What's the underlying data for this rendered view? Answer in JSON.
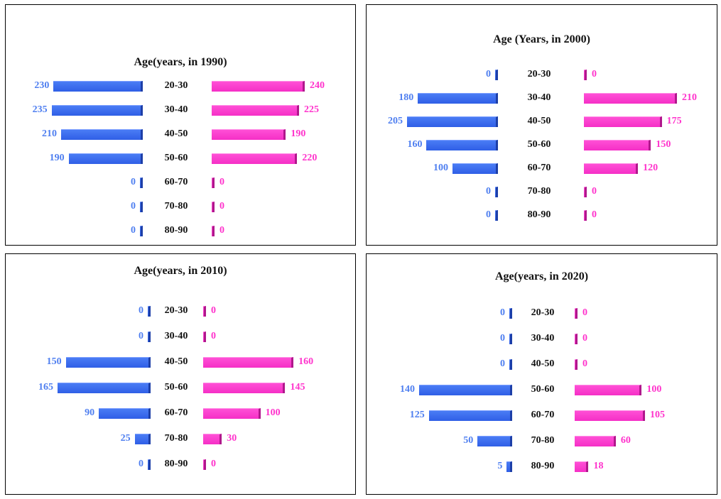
{
  "colors": {
    "male": "#3366ee",
    "female": "#ff33cc"
  },
  "chart_data": [
    {
      "type": "bar",
      "title": "Age(years, in 1990)",
      "categories": [
        "20-30",
        "30-40",
        "40-50",
        "50-60",
        "60-70",
        "70-80",
        "80-90"
      ],
      "series": [
        {
          "values": [
            230,
            235,
            210,
            190,
            0,
            0,
            0
          ]
        },
        {
          "values": [
            240,
            225,
            190,
            220,
            0,
            0,
            0
          ]
        }
      ]
    },
    {
      "type": "bar",
      "title": "Age (Years, in 2000)",
      "categories": [
        "20-30",
        "30-40",
        "40-50",
        "50-60",
        "60-70",
        "70-80",
        "80-90"
      ],
      "series": [
        {
          "values": [
            0,
            180,
            205,
            160,
            100,
            0,
            0
          ]
        },
        {
          "values": [
            0,
            210,
            175,
            150,
            120,
            0,
            0
          ]
        }
      ]
    },
    {
      "type": "bar",
      "title": "Age(years, in 2010)",
      "categories": [
        "20-30",
        "30-40",
        "40-50",
        "50-60",
        "60-70",
        "70-80",
        "80-90"
      ],
      "series": [
        {
          "values": [
            0,
            0,
            150,
            165,
            90,
            25,
            0
          ]
        },
        {
          "values": [
            0,
            0,
            160,
            145,
            100,
            30,
            0
          ]
        }
      ]
    },
    {
      "type": "bar",
      "title": "Age(years, in 2020)",
      "categories": [
        "20-30",
        "30-40",
        "40-50",
        "50-60",
        "60-70",
        "70-80",
        "80-90"
      ],
      "series": [
        {
          "values": [
            0,
            0,
            0,
            140,
            125,
            50,
            5
          ]
        },
        {
          "values": [
            0,
            0,
            0,
            100,
            105,
            60,
            18
          ]
        }
      ]
    }
  ]
}
